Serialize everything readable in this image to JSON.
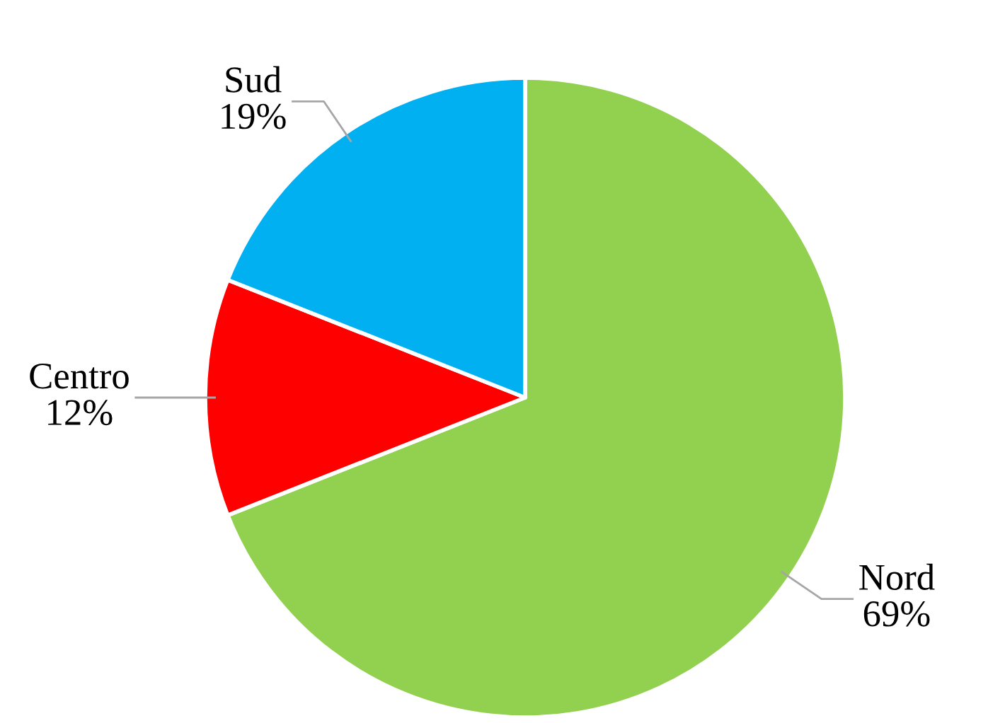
{
  "chart_data": {
    "type": "pie",
    "categories": [
      "Nord",
      "Centro",
      "Sud"
    ],
    "values": [
      69,
      12,
      19
    ],
    "colors": [
      "#92d050",
      "#ff0000",
      "#00b0f0"
    ],
    "value_labels": [
      "69%",
      "12%",
      "19%"
    ]
  }
}
